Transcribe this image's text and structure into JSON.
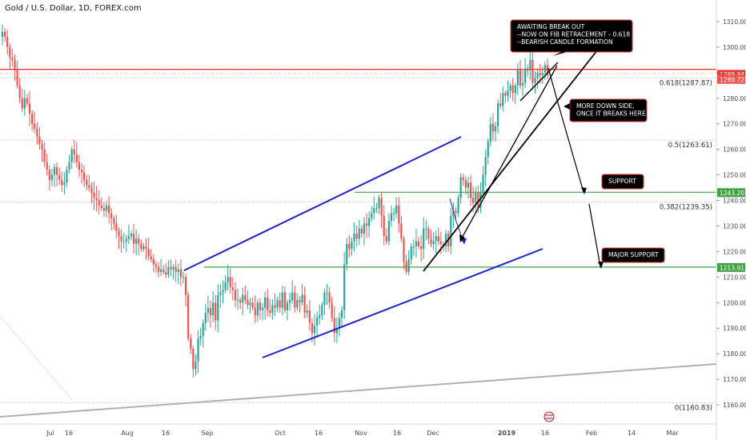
{
  "header": {
    "symbol": "Gold / U.S. Dollar, 1D, FOREX.com"
  },
  "colors": {
    "up": "#26a69a",
    "down": "#ef5350",
    "price_line": "#e53935",
    "level_line": "#43a047",
    "channel": "#1e22c8",
    "trend": "#000000",
    "long_trend": "#b0b0b0",
    "fib": "#9e9e9e",
    "axis_text": "#4a4a4a"
  },
  "chart_data": {
    "type": "candlestick",
    "y_axis": {
      "min": 1155,
      "max": 1315,
      "ticks": [
        "1160.00",
        "1170.00",
        "1180.00",
        "1190.00",
        "1200.00",
        "1210.00",
        "1220.00",
        "1230.00",
        "1240.00",
        "1250.00",
        "1260.00",
        "1270.00",
        "1280.00",
        "1290.00",
        "1300.00",
        "1310.00"
      ]
    },
    "x_axis": {
      "labels": [
        "Jul",
        "16",
        "Aug",
        "16",
        "Sep",
        "Oct",
        "16",
        "Nov",
        "16",
        "Dec",
        "2019",
        "16",
        "Feb",
        "14",
        "Mar"
      ]
    },
    "price_labels": [
      {
        "text": "1289.84",
        "value": 1289.84,
        "color": "#e53935"
      },
      {
        "text": "1289.72",
        "value": 1289.72,
        "color": "#ef5350"
      },
      {
        "text": "1243.20",
        "value": 1243.2,
        "color": "#43a047"
      },
      {
        "text": "1213.91",
        "value": 1213.91,
        "color": "#43a047"
      }
    ],
    "fib_levels": [
      {
        "label": "0.618(1287.87)",
        "value": 1287.87
      },
      {
        "label": "0.5(1263.61)",
        "value": 1263.61
      },
      {
        "label": "0.382(1239.35)",
        "value": 1239.35
      },
      {
        "label": "0(1160.83)",
        "value": 1160.83
      }
    ],
    "annotations": [
      {
        "text": "AWAITING BREAK OUT\n--NOW ON FIB RETRACEMENT - 0.618\n--BEARISH CANDLE FORMATION"
      },
      {
        "text": "MORE DOWN SIDE,\nONCE IT BREAKS HERE"
      },
      {
        "text": "SUPPORT"
      },
      {
        "text": "MAJOR SUPPORT"
      }
    ],
    "candles_close": [
      1306,
      1304,
      1300,
      1296,
      1295,
      1291,
      1285,
      1280,
      1276,
      1280,
      1278,
      1274,
      1270,
      1268,
      1265,
      1262,
      1260,
      1255,
      1252,
      1248,
      1250,
      1253,
      1250,
      1248,
      1246,
      1247,
      1252,
      1255,
      1260,
      1258,
      1255,
      1252,
      1251,
      1248,
      1246,
      1245,
      1243,
      1241,
      1240,
      1238,
      1237,
      1236,
      1238,
      1235,
      1233,
      1231,
      1228,
      1226,
      1224,
      1224,
      1225,
      1226,
      1227,
      1223,
      1225,
      1223,
      1221,
      1222,
      1221,
      1218,
      1217,
      1215,
      1214,
      1212,
      1213,
      1212,
      1211,
      1214,
      1213,
      1214,
      1212,
      1213,
      1210,
      1210,
      1203,
      1186,
      1182,
      1174,
      1177,
      1186,
      1187,
      1192,
      1196,
      1198,
      1195,
      1200,
      1193,
      1203,
      1204,
      1205,
      1208,
      1210,
      1206,
      1205,
      1201,
      1201,
      1200,
      1203,
      1201,
      1199,
      1200,
      1198,
      1195,
      1200,
      1197,
      1198,
      1202,
      1197,
      1196,
      1199,
      1198,
      1201,
      1198,
      1204,
      1197,
      1200,
      1201,
      1204,
      1198,
      1201,
      1200,
      1203,
      1196,
      1197,
      1192,
      1188,
      1191,
      1194,
      1195,
      1199,
      1204,
      1204,
      1200,
      1194,
      1188,
      1190,
      1194,
      1197,
      1215,
      1223,
      1221,
      1224,
      1227,
      1225,
      1229,
      1227,
      1231,
      1230,
      1233,
      1235,
      1237,
      1237,
      1241,
      1234,
      1226,
      1224,
      1232,
      1235,
      1235,
      1238,
      1231,
      1225,
      1216,
      1212,
      1217,
      1222,
      1222,
      1224,
      1222,
      1221,
      1229,
      1229,
      1225,
      1223,
      1224,
      1226,
      1224,
      1223,
      1222,
      1227,
      1222,
      1234,
      1236,
      1235,
      1241,
      1249,
      1248,
      1245,
      1247,
      1241,
      1239,
      1243,
      1237,
      1243,
      1250,
      1257,
      1263,
      1270,
      1267,
      1269,
      1278,
      1277,
      1282,
      1281,
      1283,
      1285,
      1282,
      1285,
      1291,
      1285,
      1286,
      1291,
      1291,
      1295,
      1286,
      1288,
      1290,
      1289,
      1290,
      1293,
      1289
    ]
  }
}
